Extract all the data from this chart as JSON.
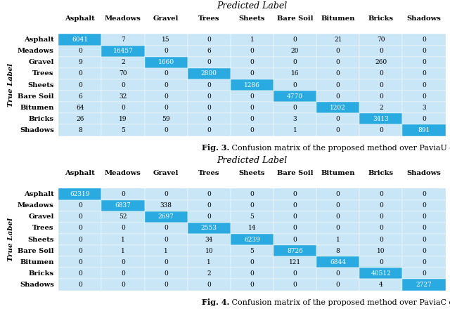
{
  "fig3": {
    "title": "Predicted Label",
    "ylabel": "True Label",
    "col_labels": [
      "Asphalt",
      "Meadows",
      "Gravel",
      "Trees",
      "Sheets",
      "Bare Soil",
      "Bitumen",
      "Bricks",
      "Shadows"
    ],
    "row_labels": [
      "Asphalt",
      "Meadows",
      "Gravel",
      "Trees",
      "Sheets",
      "Bare Soil",
      "Bitumen",
      "Bricks",
      "Shadows"
    ],
    "matrix": [
      [
        6041,
        7,
        15,
        0,
        1,
        0,
        21,
        70,
        0
      ],
      [
        0,
        16457,
        0,
        6,
        0,
        20,
        0,
        0,
        0
      ],
      [
        9,
        2,
        1660,
        0,
        0,
        0,
        0,
        260,
        0
      ],
      [
        0,
        70,
        0,
        2800,
        0,
        16,
        0,
        0,
        0
      ],
      [
        0,
        0,
        0,
        0,
        1286,
        0,
        0,
        0,
        0
      ],
      [
        6,
        32,
        0,
        0,
        0,
        4770,
        0,
        0,
        0
      ],
      [
        64,
        0,
        0,
        0,
        0,
        0,
        1202,
        2,
        3
      ],
      [
        26,
        19,
        59,
        0,
        0,
        3,
        0,
        3413,
        0
      ],
      [
        8,
        5,
        0,
        0,
        0,
        1,
        0,
        0,
        891
      ]
    ],
    "caption": "Fig. 3.",
    "caption_rest": " Confusion matrix of the proposed method over PaviaU dataset"
  },
  "fig4": {
    "title": "Predicted Label",
    "ylabel": "True Label",
    "col_labels": [
      "Asphalt",
      "Meadows",
      "Gravel",
      "Trees",
      "Sheets",
      "Bare Soil",
      "Bitumen",
      "Bricks",
      "Shadows"
    ],
    "row_labels": [
      "Asphalt",
      "Meadows",
      "Gravel",
      "Trees",
      "Sheets",
      "Bare Soil",
      "Bitumen",
      "Bricks",
      "Shadows"
    ],
    "matrix": [
      [
        62319,
        0,
        0,
        0,
        0,
        0,
        0,
        0,
        0
      ],
      [
        0,
        6837,
        338,
        0,
        0,
        0,
        0,
        0,
        0
      ],
      [
        0,
        52,
        2697,
        0,
        5,
        0,
        0,
        0,
        0
      ],
      [
        0,
        0,
        0,
        2553,
        14,
        0,
        0,
        0,
        0
      ],
      [
        0,
        1,
        0,
        34,
        6239,
        0,
        1,
        0,
        0
      ],
      [
        0,
        1,
        1,
        10,
        5,
        8726,
        8,
        10,
        0
      ],
      [
        0,
        0,
        0,
        1,
        0,
        121,
        6844,
        0,
        0
      ],
      [
        0,
        0,
        0,
        2,
        0,
        0,
        0,
        40512,
        0
      ],
      [
        0,
        0,
        0,
        0,
        0,
        0,
        0,
        4,
        2727
      ]
    ],
    "caption": "Fig. 4.",
    "caption_rest": " Confusion matrix of the proposed method over PaviaC dataset"
  },
  "diag_color": "#29ABE2",
  "off_diag_color": "#C8E6F5",
  "figsize": [
    6.4,
    4.4
  ],
  "dpi": 100,
  "title_fontsize": 9,
  "col_label_fontsize": 7.2,
  "row_label_fontsize": 7.2,
  "cell_fontsize": 6.5,
  "caption_fontsize": 8,
  "ylabel_fontsize": 7.5
}
